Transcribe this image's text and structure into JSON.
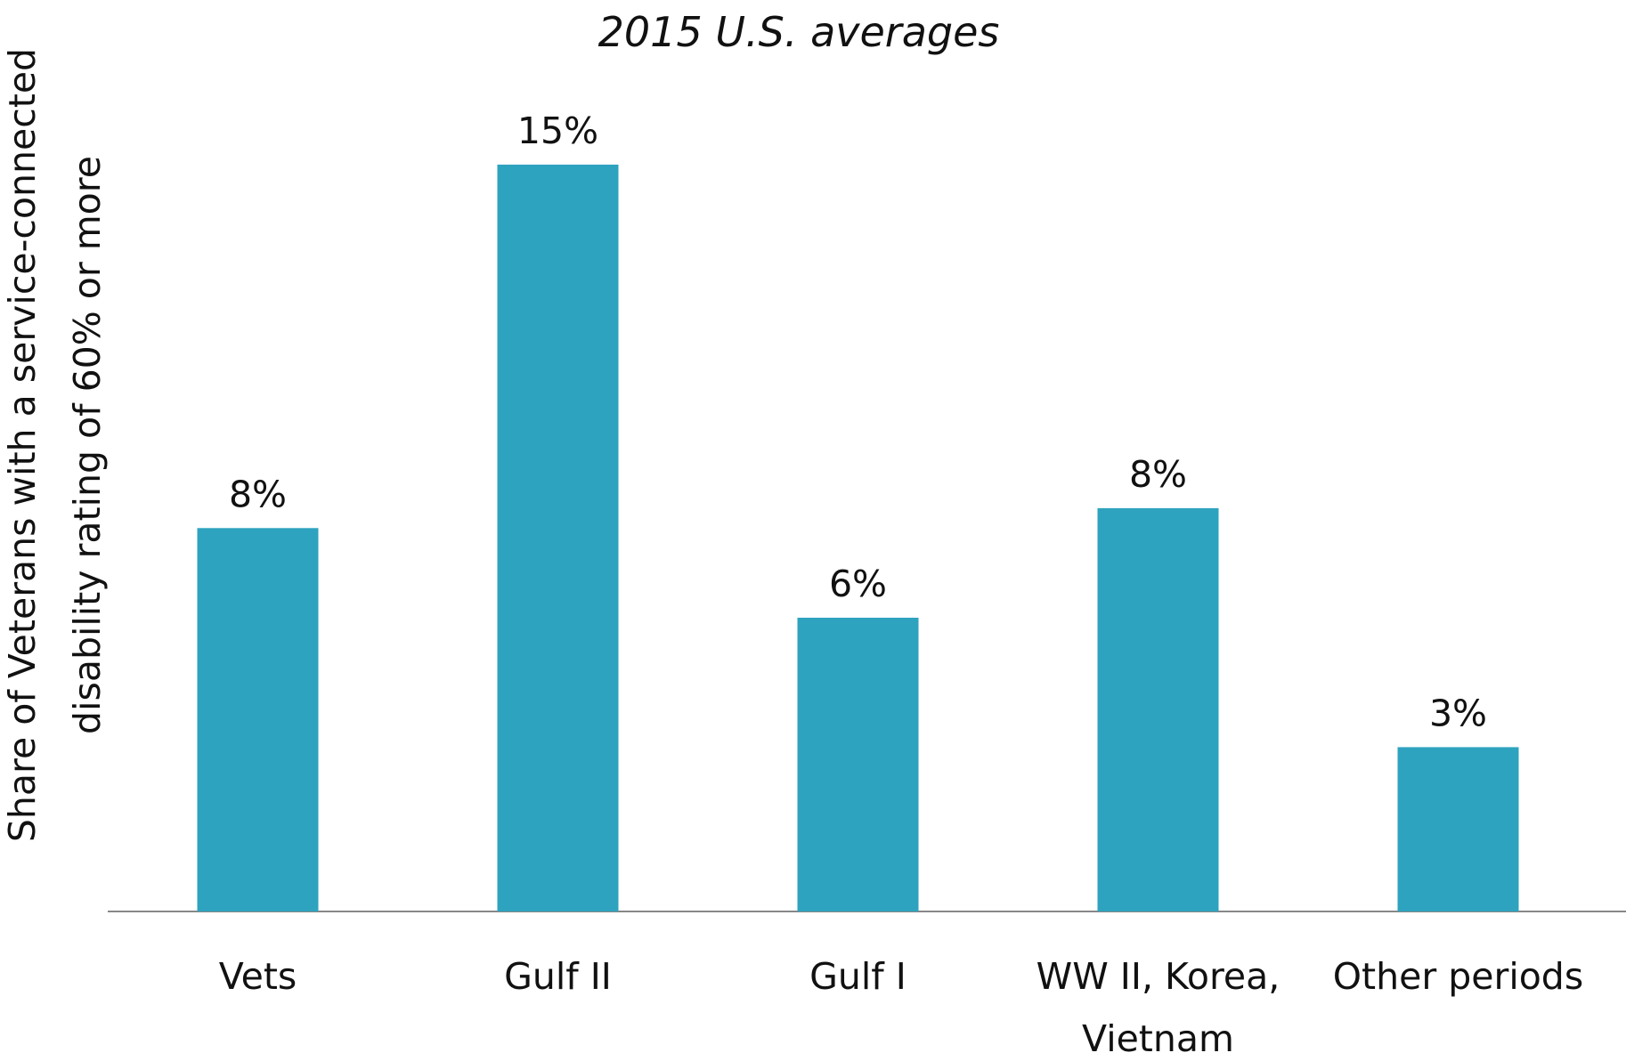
{
  "chart_data": {
    "type": "bar",
    "title": "2015 U.S. averages",
    "y_label": "Share of Veterans with a service-connected disability rating of 60% or more",
    "categories": [
      "Vets",
      "Gulf II",
      "Gulf I",
      "WW II, Korea, Vietnam",
      "Other periods"
    ],
    "values": [
      7.7,
      15,
      5.9,
      8.1,
      3.3
    ],
    "value_labels": [
      "8%",
      "15%",
      "6%",
      "8%",
      "3%"
    ],
    "color": "#2ea3bf",
    "ylim": [
      0,
      16
    ]
  }
}
